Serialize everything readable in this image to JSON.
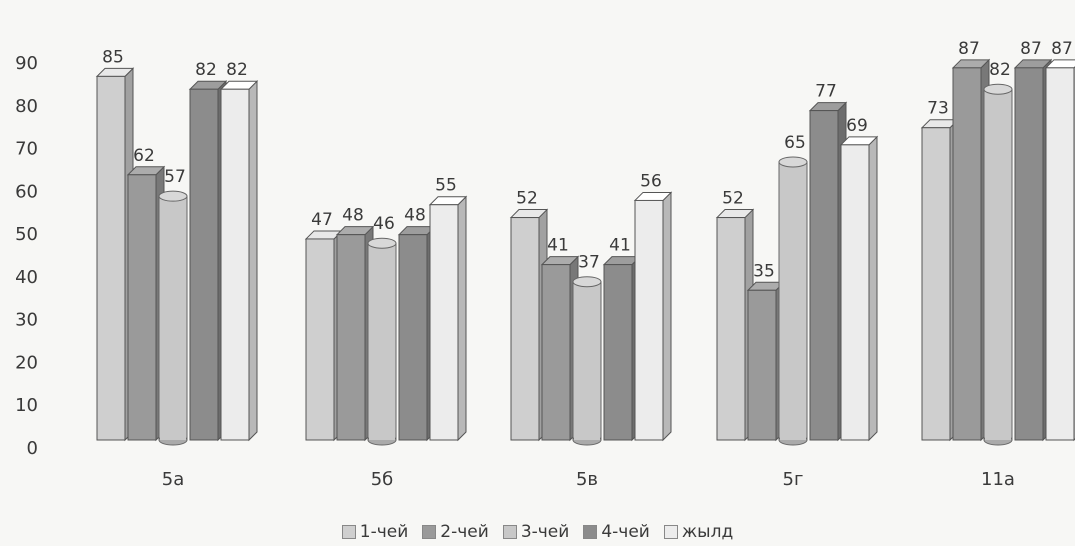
{
  "chart_data": {
    "type": "bar",
    "categories": [
      "5а",
      "5б",
      "5в",
      "5г",
      "11а"
    ],
    "series": [
      {
        "name": "1-чей",
        "values": [
          85,
          47,
          52,
          52,
          73
        ],
        "color": "#cfcfcf",
        "shape": "box"
      },
      {
        "name": "2-чей",
        "values": [
          62,
          48,
          41,
          35,
          87
        ],
        "color": "#9a9a9a",
        "shape": "box"
      },
      {
        "name": "3-чей",
        "values": [
          57,
          46,
          37,
          65,
          82
        ],
        "color": "#c8c8c8",
        "shape": "cylinder"
      },
      {
        "name": "4-чей",
        "values": [
          82,
          48,
          41,
          77,
          87
        ],
        "color": "#8c8c8c",
        "shape": "box"
      },
      {
        "name": "жылд",
        "values": [
          82,
          55,
          56,
          69,
          87
        ],
        "color": "#ececec",
        "shape": "box"
      }
    ],
    "yticks": [
      0,
      10,
      20,
      30,
      40,
      50,
      60,
      70,
      80,
      90
    ],
    "ylim": [
      0,
      90
    ],
    "title": "",
    "xlabel": "",
    "ylabel": "",
    "grid": false,
    "legend": "bottom",
    "data_labels": true
  }
}
